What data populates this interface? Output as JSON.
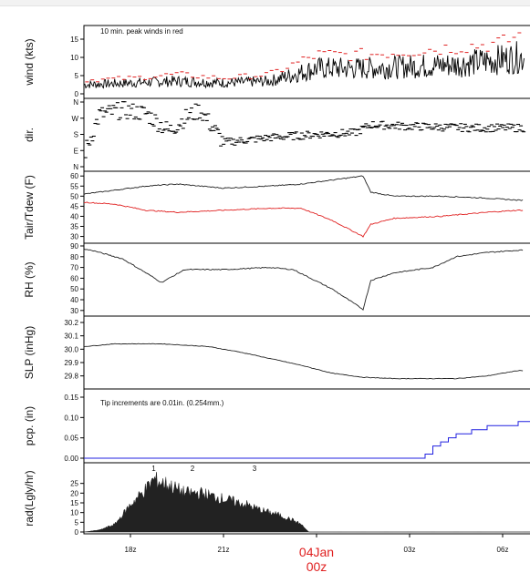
{
  "chart_data": [
    {
      "type": "line",
      "panel": "wind",
      "ylabel": "wind (kts)",
      "ylim": [
        0,
        18
      ],
      "yticks": [
        0,
        5,
        10,
        15
      ],
      "annotation": "10 min. peak winds in red",
      "colors": {
        "wind": "#000000",
        "peak": "#e02020"
      },
      "x": [
        "16:30z",
        "18:00z",
        "19:30z",
        "21:00z",
        "22:30z",
        "00:00z",
        "01:30z",
        "03:00z",
        "04:30z",
        "06:00z",
        "06:30z"
      ],
      "series": [
        {
          "values": [
            2.5,
            3,
            3.5,
            3,
            3.5,
            7,
            7,
            7.5,
            8,
            9.5,
            10
          ]
        },
        {
          "values": [
            3.5,
            4,
            5,
            4,
            5,
            10,
            10,
            11,
            12,
            13,
            15
          ]
        }
      ]
    },
    {
      "type": "scatter",
      "panel": "direction",
      "ylabel": "dir.",
      "yticks": [
        "N",
        "E",
        "S",
        "W",
        "N"
      ],
      "x": [
        "16:30z",
        "17:00z",
        "17:45z",
        "18:30z",
        "19:15z",
        "19:45z",
        "20:15z",
        "21:00z",
        "22:30z",
        "00:00z",
        "01:15z",
        "01:45z",
        "03:00z",
        "05:00z",
        "06:30z"
      ],
      "values": [
        0.7,
        3.2,
        3.5,
        3.3,
        2.2,
        3.0,
        3.5,
        1.5,
        1.8,
        2.0,
        2.1,
        2.6,
        2.5,
        2.4,
        2.4
      ]
    },
    {
      "type": "line",
      "panel": "temperature",
      "ylabel": "Tair/Tdew (F)",
      "ylim": [
        28,
        61
      ],
      "yticks": [
        30,
        35,
        40,
        45,
        50,
        55,
        60
      ],
      "colors": {
        "air": "#222222",
        "dew": "#e02020"
      },
      "x": [
        "16:30z",
        "17:30z",
        "18:30z",
        "19:30z",
        "21:00z",
        "22:30z",
        "23:30z",
        "00:30z",
        "01:30z",
        "01:45z",
        "02:30z",
        "04:00z",
        "05:30z",
        "06:30z"
      ],
      "series": [
        {
          "values": [
            51,
            53,
            55,
            56,
            54,
            55,
            56,
            58,
            60,
            52,
            50,
            50,
            49,
            48
          ]
        },
        {
          "values": [
            47,
            46,
            43,
            42,
            43,
            44,
            44,
            38,
            30,
            36,
            39,
            40,
            42,
            43
          ]
        }
      ]
    },
    {
      "type": "line",
      "panel": "rh",
      "ylabel": "RH (%)",
      "ylim": [
        29,
        90
      ],
      "yticks": [
        30,
        40,
        50,
        60,
        70,
        80,
        90
      ],
      "colors": {
        "rh": "#222222"
      },
      "x": [
        "16:30z",
        "16:45z",
        "17:45z",
        "18:30z",
        "19:00z",
        "19:45z",
        "21:00z",
        "22:30z",
        "23:15z",
        "00:30z",
        "01:30z",
        "01:45z",
        "02:30z",
        "03:45z",
        "04:30z",
        "05:30z",
        "06:30z"
      ],
      "values": [
        87,
        86,
        78,
        65,
        56,
        68,
        68,
        70,
        68,
        50,
        31,
        58,
        65,
        70,
        80,
        84,
        86
      ]
    },
    {
      "type": "line",
      "panel": "slp",
      "ylabel": "SLP (inHg)",
      "ylim": [
        29.75,
        30.2
      ],
      "yticks": [
        29.8,
        29.9,
        30.0,
        30.1,
        30.2
      ],
      "colors": {
        "slp": "#222222"
      },
      "x": [
        "16:30z",
        "17:30z",
        "19:00z",
        "20:30z",
        "21:30z",
        "22:30z",
        "23:30z",
        "00:30z",
        "01:30z",
        "02:30z",
        "03:30z",
        "04:30z",
        "05:30z",
        "06:30z"
      ],
      "values": [
        30.02,
        30.04,
        30.04,
        30.02,
        29.98,
        29.93,
        29.88,
        29.82,
        29.79,
        29.78,
        29.78,
        29.78,
        29.8,
        29.84
      ]
    },
    {
      "type": "line",
      "panel": "precip",
      "ylabel": "pcp. (in)",
      "ylim": [
        0,
        0.15
      ],
      "yticks": [
        0.0,
        0.05,
        0.1,
        0.15
      ],
      "annotation": "Tip increments are 0.01in. (0.254mm.)",
      "colors": {
        "precip": "#2020e0"
      },
      "x": [
        "16:30z",
        "03:00z",
        "03:30z",
        "03:45z",
        "04:00z",
        "04:15z",
        "04:30z",
        "05:00z",
        "05:30z",
        "06:00z",
        "06:30z"
      ],
      "values": [
        0.0,
        0.0,
        0.01,
        0.03,
        0.04,
        0.05,
        0.06,
        0.07,
        0.08,
        0.08,
        0.09
      ]
    },
    {
      "type": "area",
      "panel": "radiation",
      "ylabel": "rad(Lgly/hr)",
      "ylim": [
        0,
        30
      ],
      "yticks": [
        0,
        5,
        10,
        15,
        20,
        25
      ],
      "markers": [
        "1",
        "2",
        "3"
      ],
      "colors": {
        "fill": "#222222",
        "marker": "#8a2be2"
      },
      "x": [
        "16:30z",
        "17:00z",
        "17:30z",
        "18:00z",
        "18:30z",
        "18:45z",
        "19:15z",
        "19:45z",
        "20:15z",
        "20:45z",
        "21:15z",
        "21:45z",
        "22:15z",
        "22:45z",
        "23:15z",
        "23:30z",
        "23:45z",
        "06:30z"
      ],
      "values": [
        0,
        1,
        4,
        14,
        22,
        27,
        24,
        20,
        20,
        18,
        16,
        14,
        11,
        9,
        6,
        4,
        0,
        0
      ]
    }
  ],
  "x_axis": {
    "ticks": [
      "18z",
      "21z",
      "03z",
      "06z"
    ],
    "date_label_line1": "04Jan",
    "date_label_line2": "00z",
    "date_color": "#e02020"
  }
}
